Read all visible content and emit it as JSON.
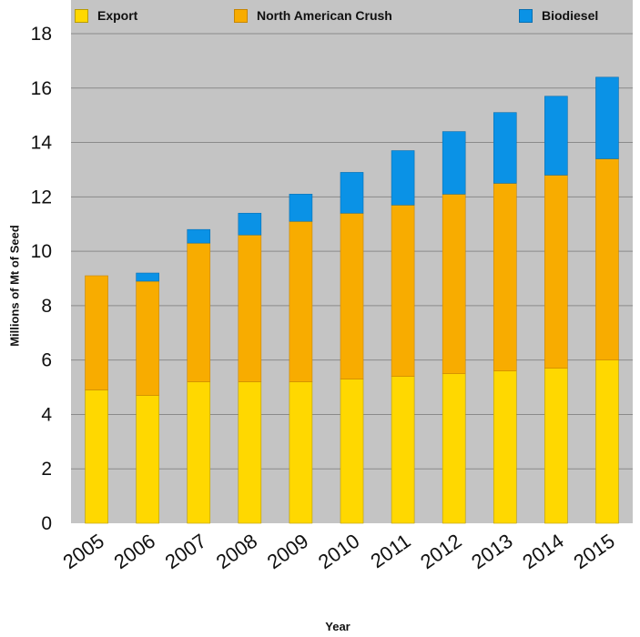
{
  "chart_data": {
    "type": "bar",
    "stacked": true,
    "categories": [
      "2005",
      "2006",
      "2007",
      "2008",
      "2009",
      "2010",
      "2011",
      "2012",
      "2013",
      "2014",
      "2015"
    ],
    "series": [
      {
        "name": "Export",
        "color": "#FFD800",
        "values": [
          4.9,
          4.7,
          5.2,
          5.2,
          5.2,
          5.3,
          5.4,
          5.5,
          5.6,
          5.7,
          6.0
        ]
      },
      {
        "name": "North American Crush",
        "color": "#F8AC00",
        "values": [
          4.2,
          4.2,
          5.1,
          5.4,
          5.9,
          6.1,
          6.3,
          6.6,
          6.9,
          7.1,
          7.4
        ]
      },
      {
        "name": "Biodiesel",
        "color": "#0A92E6",
        "values": [
          0.0,
          0.3,
          0.5,
          0.8,
          1.0,
          1.5,
          2.0,
          2.3,
          2.6,
          2.9,
          3.0
        ]
      }
    ],
    "xlabel": "Year",
    "ylabel": "Millions of Mt of Seed",
    "ylim": [
      0,
      18
    ],
    "yticks": [
      0,
      2,
      4,
      6,
      8,
      10,
      12,
      14,
      16,
      18
    ],
    "grid": true,
    "legend": "top"
  }
}
